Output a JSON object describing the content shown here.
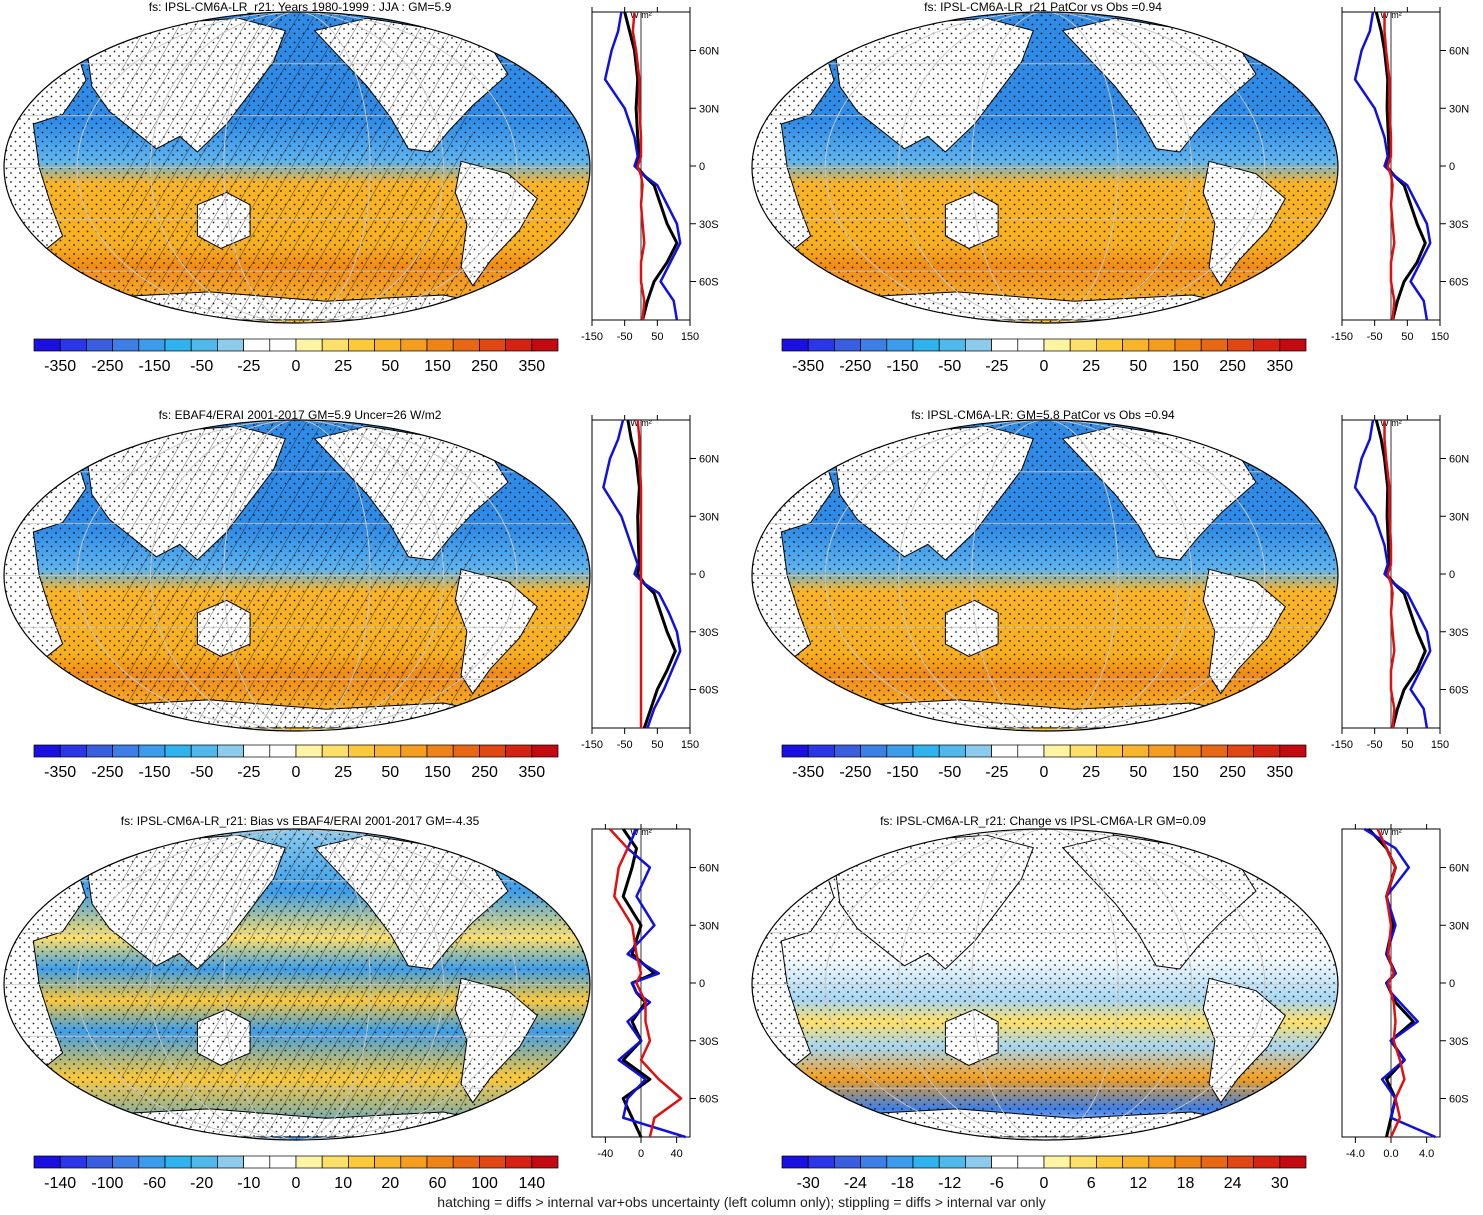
{
  "chart_data": [
    {
      "type": "heatmap",
      "title": "fs: IPSL-CM6A-LR_r21: Years 1980-1999 : JJA : GM=5.9",
      "colorbar_ticks": [
        "-350",
        "-250",
        "-150",
        "-50",
        "-25",
        "0",
        "25",
        "50",
        "150",
        "250",
        "350"
      ],
      "zonal": {
        "x_ticks": [
          "-150",
          "-50",
          "50",
          "150"
        ],
        "xlim": [
          -150,
          150
        ],
        "y_ticks": [
          "60N",
          "30N",
          "0",
          "30S",
          "60S"
        ],
        "unit": "W m²",
        "series": [
          {
            "name": "black",
            "color": "#000000",
            "lat": [
              80,
              70,
              60,
              45,
              30,
              15,
              5,
              0,
              -5,
              -10,
              -20,
              -30,
              -40,
              -50,
              -60,
              -70,
              -80
            ],
            "values": [
              -50,
              -35,
              -20,
              -10,
              -15,
              -10,
              -5,
              -15,
              10,
              40,
              60,
              80,
              110,
              80,
              40,
              20,
              5
            ]
          },
          {
            "name": "blue",
            "color": "#1010e0",
            "lat": [
              80,
              70,
              60,
              45,
              30,
              15,
              5,
              0,
              -5,
              -10,
              -20,
              -30,
              -40,
              -50,
              -60,
              -70,
              -80
            ],
            "values": [
              -60,
              -70,
              -90,
              -110,
              -50,
              -20,
              -10,
              -20,
              10,
              50,
              80,
              110,
              120,
              90,
              60,
              100,
              110
            ]
          },
          {
            "name": "red",
            "color": "#e01010",
            "lat": [
              80,
              70,
              60,
              45,
              30,
              15,
              5,
              0,
              -5,
              -10,
              -20,
              -30,
              -40,
              -50,
              -60,
              -70,
              -80
            ],
            "values": [
              -20,
              -25,
              -15,
              -5,
              -5,
              0,
              0,
              -10,
              0,
              5,
              0,
              5,
              10,
              0,
              0,
              10,
              5
            ]
          }
        ]
      }
    },
    {
      "type": "heatmap",
      "title": "fs: IPSL-CM6A-LR_r21 PatCor vs Obs =0.94",
      "colorbar_ticks": [
        "-350",
        "-250",
        "-150",
        "-50",
        "-25",
        "0",
        "25",
        "50",
        "150",
        "250",
        "350"
      ],
      "zonal": {
        "x_ticks": [
          "-150",
          "-50",
          "50",
          "150"
        ],
        "xlim": [
          -150,
          150
        ],
        "y_ticks": [
          "60N",
          "30N",
          "0",
          "30S",
          "60S"
        ],
        "unit": "W m²",
        "series": [
          {
            "name": "black",
            "color": "#000000",
            "lat": [
              80,
              70,
              60,
              45,
              30,
              15,
              5,
              0,
              -5,
              -10,
              -20,
              -30,
              -40,
              -50,
              -60,
              -70,
              -80
            ],
            "values": [
              -45,
              -30,
              -20,
              -10,
              -12,
              -8,
              -5,
              -15,
              10,
              40,
              60,
              80,
              105,
              80,
              40,
              20,
              5
            ]
          },
          {
            "name": "blue",
            "color": "#1010e0",
            "lat": [
              80,
              70,
              60,
              45,
              30,
              15,
              5,
              0,
              -5,
              -10,
              -20,
              -30,
              -40,
              -50,
              -60,
              -70,
              -80
            ],
            "values": [
              -55,
              -65,
              -90,
              -110,
              -50,
              -20,
              -10,
              -20,
              10,
              50,
              80,
              110,
              120,
              90,
              60,
              100,
              110
            ]
          },
          {
            "name": "red",
            "color": "#e01010",
            "lat": [
              80,
              70,
              60,
              45,
              30,
              15,
              5,
              0,
              -5,
              -10,
              -20,
              -30,
              -40,
              -50,
              -60,
              -70,
              -80
            ],
            "values": [
              -20,
              -20,
              -15,
              -5,
              -5,
              0,
              0,
              -10,
              0,
              5,
              0,
              5,
              10,
              0,
              0,
              10,
              5
            ]
          }
        ]
      }
    },
    {
      "type": "heatmap",
      "title": "fs: EBAF4/ERAI 2001-2017 GM=5.9 Uncer=26 W/m2",
      "colorbar_ticks": [
        "-350",
        "-250",
        "-150",
        "-50",
        "-25",
        "0",
        "25",
        "50",
        "150",
        "250",
        "350"
      ],
      "zonal": {
        "x_ticks": [
          "-150",
          "-50",
          "50",
          "150"
        ],
        "xlim": [
          -150,
          150
        ],
        "y_ticks": [
          "60N",
          "30N",
          "0",
          "30S",
          "60S"
        ],
        "unit": "W m²",
        "series": [
          {
            "name": "black",
            "color": "#000000",
            "lat": [
              80,
              70,
              60,
              45,
              30,
              15,
              5,
              0,
              -5,
              -10,
              -20,
              -30,
              -40,
              -50,
              -60,
              -70,
              -80
            ],
            "values": [
              -40,
              -30,
              -15,
              -5,
              -10,
              -8,
              -5,
              -10,
              10,
              40,
              60,
              80,
              105,
              80,
              50,
              30,
              10
            ]
          },
          {
            "name": "blue",
            "color": "#1010e0",
            "lat": [
              80,
              70,
              60,
              45,
              30,
              15,
              5,
              0,
              -5,
              -10,
              -20,
              -30,
              -40,
              -50,
              -60,
              -70,
              -80
            ],
            "values": [
              -55,
              -70,
              -95,
              -115,
              -60,
              -30,
              -10,
              -20,
              10,
              55,
              85,
              110,
              120,
              95,
              70,
              40,
              20
            ]
          },
          {
            "name": "red",
            "color": "#e01010",
            "lat": [
              80,
              70,
              60,
              45,
              30,
              15,
              5,
              0,
              -5,
              -10,
              -20,
              -30,
              -40,
              -50,
              -60,
              -70,
              -80
            ],
            "values": [
              -10,
              -5,
              -5,
              0,
              0,
              0,
              0,
              0,
              0,
              0,
              0,
              0,
              0,
              0,
              0,
              0,
              0
            ]
          }
        ]
      }
    },
    {
      "type": "heatmap",
      "title": "fs: IPSL-CM6A-LR: GM=5.8 PatCor vs Obs =0.94",
      "colorbar_ticks": [
        "-350",
        "-250",
        "-150",
        "-50",
        "-25",
        "0",
        "25",
        "50",
        "150",
        "250",
        "350"
      ],
      "zonal": {
        "x_ticks": [
          "-150",
          "-50",
          "50",
          "150"
        ],
        "xlim": [
          -150,
          150
        ],
        "y_ticks": [
          "60N",
          "30N",
          "0",
          "30S",
          "60S"
        ],
        "unit": "W m²",
        "series": [
          {
            "name": "black",
            "color": "#000000",
            "lat": [
              80,
              70,
              60,
              45,
              30,
              15,
              5,
              0,
              -5,
              -10,
              -20,
              -30,
              -40,
              -50,
              -60,
              -70,
              -80
            ],
            "values": [
              -45,
              -30,
              -20,
              -10,
              -12,
              -8,
              -5,
              -15,
              10,
              40,
              60,
              80,
              105,
              80,
              40,
              20,
              5
            ]
          },
          {
            "name": "blue",
            "color": "#1010e0",
            "lat": [
              80,
              70,
              60,
              45,
              30,
              15,
              5,
              0,
              -5,
              -10,
              -20,
              -30,
              -40,
              -50,
              -60,
              -70,
              -80
            ],
            "values": [
              -55,
              -65,
              -90,
              -110,
              -50,
              -20,
              -10,
              -20,
              10,
              50,
              80,
              110,
              120,
              90,
              60,
              100,
              110
            ]
          },
          {
            "name": "red",
            "color": "#e01010",
            "lat": [
              80,
              70,
              60,
              45,
              30,
              15,
              5,
              0,
              -5,
              -10,
              -20,
              -30,
              -40,
              -50,
              -60,
              -70,
              -80
            ],
            "values": [
              -20,
              -20,
              -15,
              -5,
              -5,
              0,
              0,
              -10,
              0,
              5,
              0,
              5,
              10,
              0,
              0,
              10,
              5
            ]
          }
        ]
      }
    },
    {
      "type": "heatmap",
      "title": "fs: IPSL-CM6A-LR_r21: Bias vs EBAF4/ERAI 2001-2017 GM=-4.35",
      "colorbar_ticks": [
        "-140",
        "-100",
        "-60",
        "-20",
        "-10",
        "0",
        "10",
        "20",
        "60",
        "100",
        "140"
      ],
      "zonal": {
        "x_ticks": [
          "-40",
          "0",
          "40"
        ],
        "xlim": [
          -55,
          55
        ],
        "y_ticks": [
          "60N",
          "30N",
          "0",
          "30S",
          "60S"
        ],
        "unit": "W m²",
        "series": [
          {
            "name": "black",
            "color": "#000000",
            "lat": [
              80,
              70,
              60,
              45,
              30,
              15,
              5,
              0,
              -5,
              -10,
              -20,
              -30,
              -40,
              -50,
              -60,
              -70,
              -80
            ],
            "values": [
              -20,
              -5,
              -10,
              -20,
              0,
              -10,
              15,
              -10,
              -5,
              5,
              -10,
              0,
              -20,
              10,
              -20,
              -10,
              0
            ]
          },
          {
            "name": "blue",
            "color": "#1010e0",
            "lat": [
              80,
              70,
              60,
              45,
              30,
              15,
              5,
              0,
              -5,
              -10,
              -20,
              -30,
              -40,
              -50,
              -60,
              -70,
              -80
            ],
            "values": [
              -5,
              -15,
              10,
              -5,
              15,
              -15,
              20,
              -10,
              -5,
              10,
              -15,
              0,
              -25,
              5,
              -15,
              -20,
              50
            ]
          },
          {
            "name": "red",
            "color": "#e01010",
            "lat": [
              80,
              70,
              60,
              45,
              30,
              15,
              5,
              0,
              -5,
              -10,
              -20,
              -30,
              -40,
              -50,
              -60,
              -70,
              -80
            ],
            "values": [
              -35,
              -15,
              -25,
              -30,
              -10,
              -5,
              0,
              -5,
              0,
              5,
              5,
              10,
              0,
              20,
              45,
              15,
              10
            ]
          }
        ]
      }
    },
    {
      "type": "heatmap",
      "title": "fs: IPSL-CM6A-LR_r21: Change vs IPSL-CM6A-LR GM=0.09",
      "colorbar_ticks": [
        "-30",
        "-24",
        "-18",
        "-12",
        "-6",
        "0",
        "6",
        "12",
        "18",
        "24",
        "30"
      ],
      "zonal": {
        "x_ticks": [
          "-4.0",
          "0.0",
          "4.0"
        ],
        "xlim": [
          -5.5,
          5.5
        ],
        "y_ticks": [
          "60N",
          "30N",
          "0",
          "30S",
          "60S"
        ],
        "unit": "W m²",
        "series": [
          {
            "name": "black",
            "color": "#000000",
            "lat": [
              80,
              70,
              60,
              45,
              30,
              15,
              5,
              0,
              -5,
              -10,
              -20,
              -30,
              -40,
              -50,
              -60,
              -70,
              -80
            ],
            "values": [
              -2.5,
              -0.5,
              0.5,
              -0.5,
              0.2,
              -0.5,
              0.5,
              -0.5,
              0,
              0.5,
              2.5,
              0,
              1.5,
              -0.5,
              0.5,
              0,
              -0.5
            ]
          },
          {
            "name": "blue",
            "color": "#1010e0",
            "lat": [
              80,
              70,
              60,
              45,
              30,
              15,
              5,
              0,
              -5,
              -10,
              -20,
              -30,
              -40,
              -50,
              -60,
              -70,
              -80
            ],
            "values": [
              -3,
              0.5,
              2,
              -0.5,
              0.5,
              -0.5,
              0.5,
              -0.5,
              0,
              1,
              3,
              0,
              1.5,
              -1,
              0.5,
              0,
              5
            ]
          },
          {
            "name": "red",
            "color": "#e01010",
            "lat": [
              80,
              70,
              60,
              45,
              30,
              15,
              5,
              0,
              -5,
              -10,
              -20,
              -30,
              -40,
              -50,
              -60,
              -70,
              -80
            ],
            "values": [
              -1.5,
              -0.5,
              0.5,
              -0.5,
              0,
              -0.3,
              0.3,
              -0.3,
              0,
              0.3,
              0.5,
              0.3,
              1,
              1.5,
              0.5,
              1,
              0
            ]
          }
        ]
      }
    }
  ],
  "colors": {
    "palette": [
      "#1a10e0",
      "#2a36e8",
      "#3a5ee0",
      "#3e7fe6",
      "#3c9ceb",
      "#2fb3ef",
      "#50b8ea",
      "#8ccbec",
      "#ffffff",
      "#ffffff",
      "#fff3a6",
      "#fde06a",
      "#fbc93a",
      "#f8b42a",
      "#f49d1f",
      "#ee8418",
      "#e86715",
      "#e04713",
      "#d42312",
      "#c20a10"
    ],
    "ocean_north": "#2f8be6",
    "ocean_tropic": "#5fb4ee",
    "ocean_south": "#f7b020",
    "ocean_south_deep": "#ef8a18",
    "land": "#ffffff",
    "bias_mix_a": "#3d9eea",
    "bias_mix_b": "#fbc93a",
    "change_light": "#a8d6f2",
    "change_warm": "#f4a020"
  },
  "footer": "hatching = diffs > internal var+obs uncertainty (left column only); stippling = diffs > internal var only"
}
